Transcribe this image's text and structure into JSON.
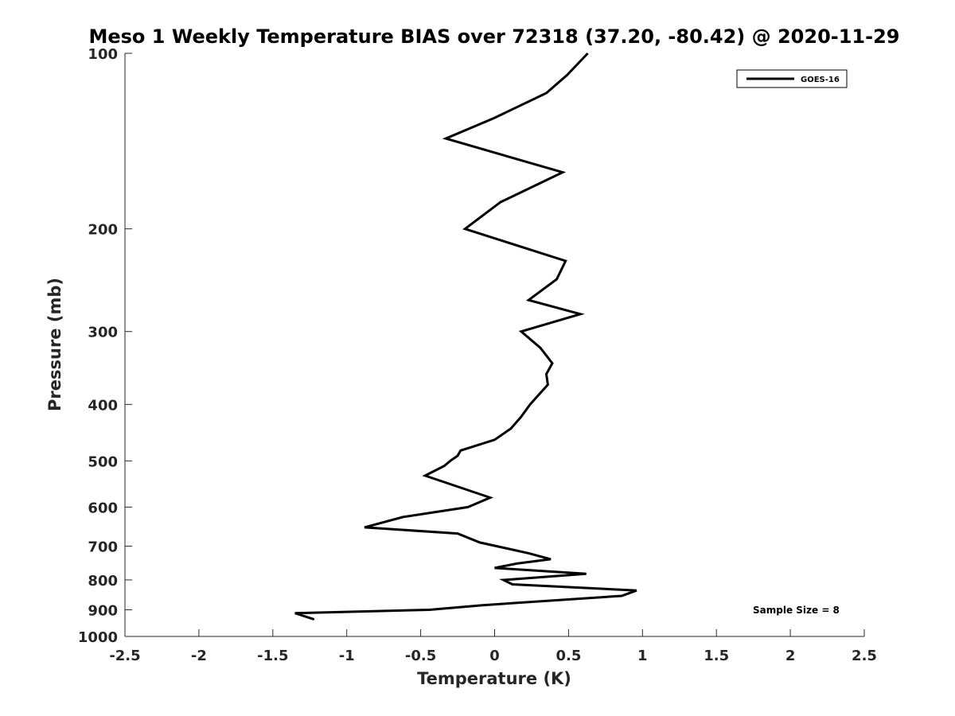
{
  "chart_data": {
    "type": "line",
    "title": "Meso 1 Weekly Temperature BIAS over 72318 (37.20, -80.42) @ 2020-11-29",
    "xlabel": "Temperature (K)",
    "ylabel": "Pressure (mb)",
    "xlim": [
      -2.5,
      2.5
    ],
    "ylim": [
      100,
      1000
    ],
    "y_scale": "log",
    "y_reversed": true,
    "x_ticks": [
      "-2.5",
      "-2",
      "-1.5",
      "-1",
      "-0.5",
      "0",
      "0.5",
      "1",
      "1.5",
      "2",
      "2.5"
    ],
    "x_tick_values": [
      -2.5,
      -2,
      -1.5,
      -1,
      -0.5,
      0,
      0.5,
      1,
      1.5,
      2,
      2.5
    ],
    "y_ticks": [
      "100",
      "200",
      "300",
      "400",
      "500",
      "600",
      "700",
      "800",
      "900",
      "1000"
    ],
    "y_tick_values": [
      100,
      200,
      300,
      400,
      500,
      600,
      700,
      800,
      900,
      1000
    ],
    "grid": false,
    "legend_position": "top-right",
    "series": [
      {
        "name": "GOES-16",
        "color": "#000000",
        "points": [
          [
            0.63,
            100
          ],
          [
            0.49,
            109
          ],
          [
            0.35,
            117
          ],
          [
            0.0,
            129
          ],
          [
            -0.33,
            140
          ],
          [
            0.46,
            160
          ],
          [
            0.04,
            180
          ],
          [
            -0.2,
            200
          ],
          [
            0.48,
            227
          ],
          [
            0.42,
            244
          ],
          [
            0.23,
            265
          ],
          [
            0.58,
            280
          ],
          [
            0.18,
            300
          ],
          [
            0.31,
            320
          ],
          [
            0.39,
            340
          ],
          [
            0.35,
            355
          ],
          [
            0.36,
            370
          ],
          [
            0.24,
            400
          ],
          [
            0.18,
            420
          ],
          [
            0.11,
            440
          ],
          [
            0.0,
            460
          ],
          [
            -0.23,
            480
          ],
          [
            -0.25,
            490
          ],
          [
            -0.3,
            500
          ],
          [
            -0.34,
            510
          ],
          [
            -0.47,
            530
          ],
          [
            -0.03,
            578
          ],
          [
            -0.18,
            600
          ],
          [
            -0.62,
            624
          ],
          [
            -0.88,
            650
          ],
          [
            -0.25,
            666
          ],
          [
            -0.1,
            690
          ],
          [
            0.23,
            720
          ],
          [
            0.38,
            737
          ],
          [
            0.15,
            750
          ],
          [
            0.0,
            763
          ],
          [
            0.62,
            781
          ],
          [
            0.06,
            800
          ],
          [
            0.12,
            814
          ],
          [
            0.96,
            834
          ],
          [
            0.86,
            852
          ],
          [
            -0.08,
            884
          ],
          [
            -0.44,
            900
          ],
          [
            -1.35,
            912
          ],
          [
            -1.22,
            935
          ]
        ]
      }
    ],
    "annotation": "Sample Size = 8"
  }
}
